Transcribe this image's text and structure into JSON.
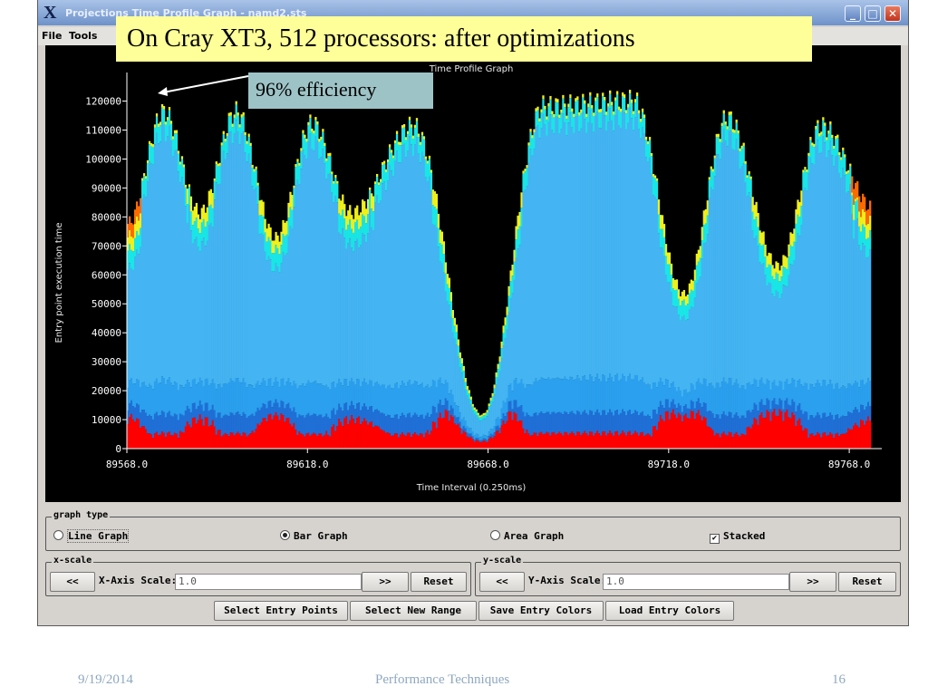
{
  "window": {
    "title": "Projections Time Profile Graph - namd2.sts",
    "menu": [
      "File",
      "Tools"
    ]
  },
  "slide": {
    "callout": "On Cray XT3, 512 processors:  after optimizations",
    "annotation": "96% efficiency",
    "footer": {
      "date": "9/19/2014",
      "center": "Performance Techniques",
      "page": "16"
    }
  },
  "chart_data": {
    "type": "bar",
    "stacked": true,
    "title": "Time Profile Graph",
    "xlabel": "Time Interval (0.250ms)",
    "ylabel": "Entry point execution time",
    "x_ticks": [
      "89568.0",
      "89618.0",
      "89668.0",
      "89718.0",
      "89768.0"
    ],
    "y_ticks": [
      "0",
      "10000",
      "20000",
      "30000",
      "40000",
      "50000",
      "60000",
      "70000",
      "80000",
      "90000",
      "100000",
      "110000",
      "120000"
    ],
    "xlim": [
      89568,
      89775
    ],
    "ylim": [
      0,
      128000
    ],
    "series_colors": {
      "red": "#ff0000",
      "darkblue": "#1f6fd6",
      "blue": "#2aa0ee",
      "lightblue": "#44b4f2",
      "cyan": "#19e6e6",
      "yellow": "#f0f01a",
      "orange": "#ff6a00"
    },
    "peaks": [
      {
        "x": 89578,
        "total": 120000
      },
      {
        "x": 89598,
        "total": 120000
      },
      {
        "x": 89619,
        "total": 116000
      },
      {
        "x": 89647,
        "total": 115000
      },
      {
        "x": 89683,
        "total": 122000
      },
      {
        "x": 89708,
        "total": 124000
      },
      {
        "x": 89734,
        "total": 118000
      },
      {
        "x": 89760,
        "total": 115000
      }
    ],
    "troughs": [
      {
        "x": 89588,
        "total": 84000
      },
      {
        "x": 89609,
        "total": 75000
      },
      {
        "x": 89630,
        "total": 84000
      },
      {
        "x": 89666,
        "total": 12000
      },
      {
        "x": 89722,
        "total": 55000
      },
      {
        "x": 89748,
        "total": 65000
      }
    ]
  },
  "controls": {
    "graph_type": {
      "title": "graph type",
      "options": [
        "Line Graph",
        "Bar Graph",
        "Area Graph"
      ],
      "selected": "Bar Graph",
      "stacked_label": "Stacked",
      "stacked_checked": true
    },
    "x_scale": {
      "title": "x-scale",
      "dec": "<<",
      "label": "X-Axis Scale:",
      "value": "1.0",
      "inc": ">>",
      "reset": "Reset"
    },
    "y_scale": {
      "title": "y-scale",
      "dec": "<<",
      "label": "Y-Axis Scale:",
      "value": "1.0",
      "inc": ">>",
      "reset": "Reset"
    },
    "buttons": [
      "Select Entry Points",
      "Select New Range",
      "Save Entry Colors",
      "Load Entry Colors"
    ]
  }
}
